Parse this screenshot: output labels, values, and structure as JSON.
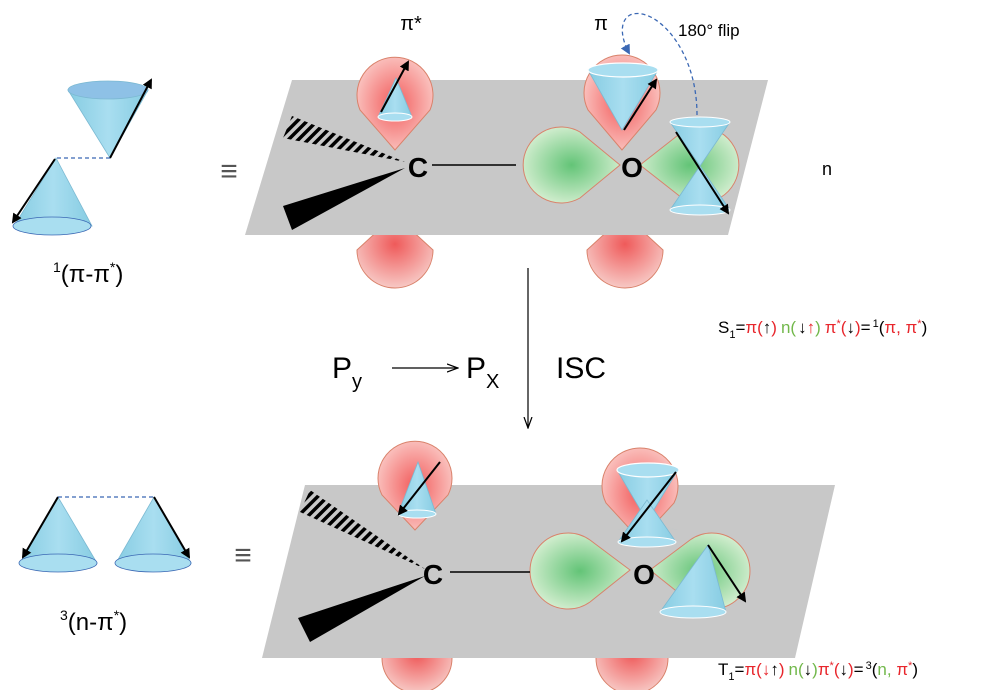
{
  "labels": {
    "pi_star": "π*",
    "pi": "π",
    "flip": "180° flip",
    "n": "n",
    "carbon_top": "C",
    "oxygen_top": "O",
    "carbon_bottom": "C",
    "oxygen_bottom": "O",
    "equiv_top": "≡",
    "equiv_bottom": "≡",
    "singlet": {
      "sup": "1",
      "main": "(π-π",
      "star": "*",
      "close": ")"
    },
    "triplet": {
      "sup": "3",
      "main": "(n-π",
      "star": "*",
      "close": ")"
    },
    "py": {
      "main": "P",
      "sub": "y"
    },
    "px": {
      "main": "P",
      "sub": "X"
    },
    "isc": "ISC"
  },
  "equations": {
    "s1": {
      "lhs": "S",
      "lhs_sub": "1",
      "eq": "=",
      "pi": "π(",
      "pi_arrows": "↑",
      "pi_close": ")",
      "n": "n(",
      "n_arrow1": "↓",
      "n_arrow2": "↑",
      "n_close": ")",
      "pistar": "π",
      "pistar_sup": "*",
      "pistar_open": "(",
      "pistar_arrow": "↓",
      "pistar_close": ")",
      "rhs_eq": "=",
      "rhs_sup": "1",
      "rhs_open": "(",
      "rhs_a": "π, ",
      "rhs_b": "π",
      "rhs_b_sup": "*",
      "rhs_close": ")"
    },
    "t1": {
      "lhs": "T",
      "lhs_sub": "1",
      "eq": "=",
      "pi": "π(",
      "pi_arrow1": "↓",
      "pi_arrow2": "↑",
      "pi_close": ")",
      "n": "n(",
      "n_arrow": "↓",
      "n_close": ")",
      "pistar": "π",
      "pistar_sup": "*",
      "pistar_open": "(",
      "pistar_arrow": "↓",
      "pistar_close": ")",
      "rhs_eq": "=",
      "rhs_sup": "3",
      "rhs_open": "(",
      "rhs_a": "n, ",
      "rhs_b": "π",
      "rhs_b_sup": "*",
      "rhs_close": ")"
    }
  },
  "colors": {
    "red": "#e8262c",
    "green": "#72b84b",
    "black": "#000000",
    "plane": "#c9c9c9",
    "cone": "#9fd6e6",
    "cone_top": "#6fb3d6",
    "lobe_red": "#f08c8c",
    "lobe_green": "#8fd49a",
    "dash": "#3b68b4"
  }
}
